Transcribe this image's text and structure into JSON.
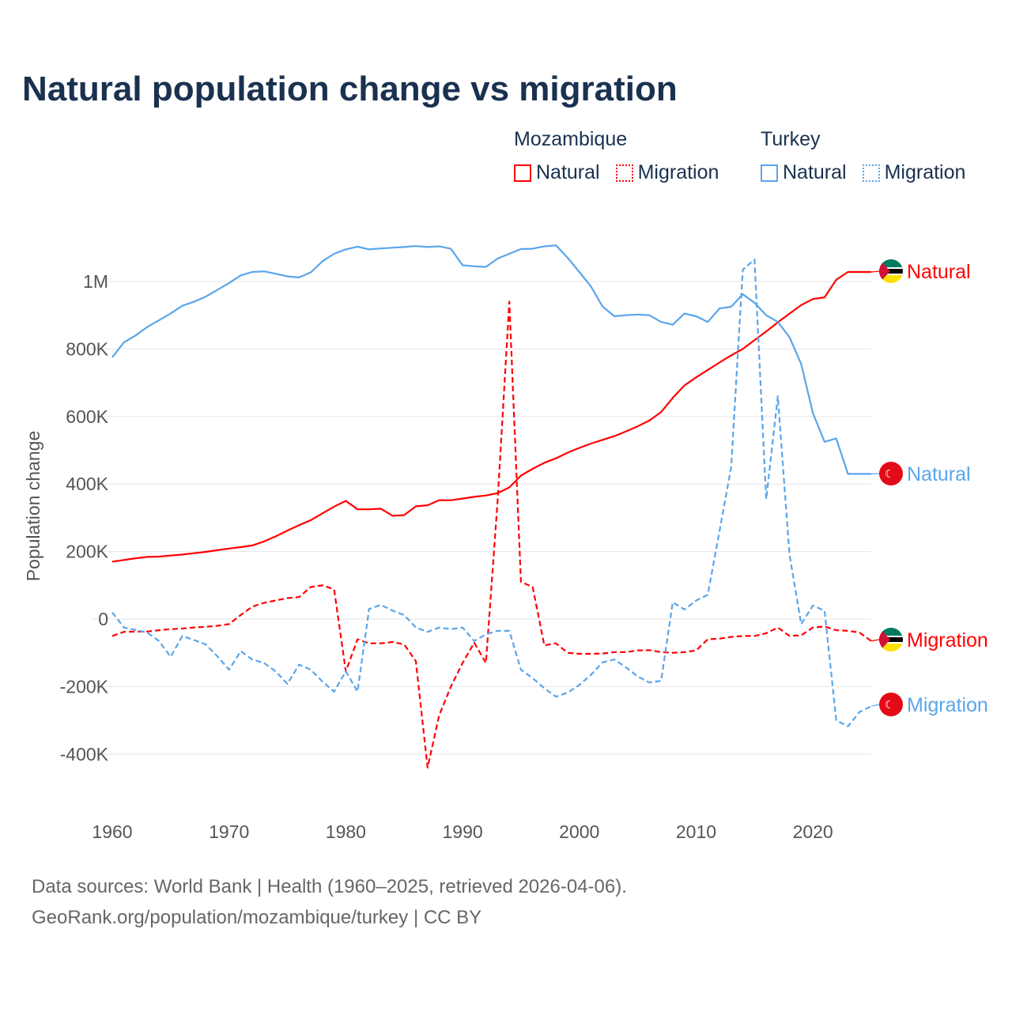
{
  "title": "Natural population change vs migration",
  "legend": [
    {
      "group": "Mozambique",
      "color": "#ff0000",
      "items": [
        "Natural",
        "Migration"
      ]
    },
    {
      "group": "Turkey",
      "color": "#5aa5ea",
      "items": [
        "Natural",
        "Migration"
      ]
    }
  ],
  "footer": {
    "line1": "Data sources: World Bank | Health (1960–2025, retrieved 2026-04-06).",
    "line2": "GeoRank.org/population/mozambique/turkey | CC BY"
  },
  "chart_data": {
    "type": "line",
    "title": "Natural population change vs migration",
    "xlabel": "",
    "ylabel": "Population change",
    "xlim": [
      1960,
      2025
    ],
    "ylim": [
      -400000,
      1100000
    ],
    "x_ticks": [
      1960,
      1970,
      1980,
      1990,
      2000,
      2010,
      2020
    ],
    "x_tick_labels": [
      "1960",
      "1970",
      "1980",
      "1990",
      "2000",
      "2010",
      "2020"
    ],
    "y_ticks": [
      -400000,
      -200000,
      0,
      200000,
      400000,
      600000,
      800000,
      1000000
    ],
    "y_tick_labels": [
      "-400K",
      "-200K",
      "0",
      "200K",
      "400K",
      "600K",
      "800K",
      "1M"
    ],
    "grid": true,
    "x": [
      1960,
      1961,
      1962,
      1963,
      1964,
      1965,
      1966,
      1967,
      1968,
      1969,
      1970,
      1971,
      1972,
      1973,
      1974,
      1975,
      1976,
      1977,
      1978,
      1979,
      1980,
      1981,
      1982,
      1983,
      1984,
      1985,
      1986,
      1987,
      1988,
      1989,
      1990,
      1991,
      1992,
      1993,
      1994,
      1995,
      1996,
      1997,
      1998,
      1999,
      2000,
      2001,
      2002,
      2003,
      2004,
      2005,
      2006,
      2007,
      2008,
      2009,
      2010,
      2011,
      2012,
      2013,
      2014,
      2015,
      2016,
      2017,
      2018,
      2019,
      2020,
      2021,
      2022,
      2023,
      2024,
      2025
    ],
    "series": [
      {
        "name": "Mozambique Natural",
        "end_label": "Natural",
        "country": "Mozambique",
        "color": "#ff0000",
        "dash": false,
        "values": [
          170,
          175,
          180,
          184,
          185,
          188,
          191,
          195,
          199,
          204,
          209,
          213,
          218,
          230,
          245,
          262,
          278,
          293,
          313,
          333,
          350,
          325,
          325,
          327,
          306,
          308,
          334,
          337,
          352,
          352,
          357,
          362,
          366,
          373,
          390,
          425,
          445,
          463,
          476,
          493,
          507,
          520,
          531,
          542,
          556,
          571,
          588,
          613,
          655,
          692,
          716,
          738,
          760,
          781,
          800,
          826,
          852,
          879,
          905,
          930,
          948,
          953,
          1005,
          1028,
          1028,
          1028
        ]
      },
      {
        "name": "Turkey Natural",
        "end_label": "Natural",
        "country": "Turkey",
        "color": "#5aa5ea",
        "dash": false,
        "values": [
          775,
          820,
          840,
          865,
          885,
          905,
          928,
          940,
          955,
          975,
          995,
          1018,
          1028,
          1030,
          1023,
          1015,
          1012,
          1027,
          1060,
          1082,
          1095,
          1103,
          1095,
          1098,
          1100,
          1102,
          1105,
          1102,
          1104,
          1097,
          1048,
          1045,
          1043,
          1068,
          1082,
          1096,
          1097,
          1104,
          1107,
          1070,
          1028,
          985,
          925,
          897,
          900,
          902,
          900,
          880,
          872,
          905,
          897,
          880,
          920,
          925,
          962,
          937,
          900,
          880,
          835,
          755,
          610,
          525,
          535,
          430,
          430,
          430
        ]
      },
      {
        "name": "Mozambique Migration",
        "end_label": "Migration",
        "country": "Mozambique",
        "color": "#ff0000",
        "dash": true,
        "values": [
          -50,
          -38,
          -37,
          -37,
          -33,
          -30,
          -28,
          -25,
          -23,
          -20,
          -15,
          12,
          37,
          48,
          55,
          62,
          65,
          95,
          100,
          88,
          -155,
          -60,
          -72,
          -72,
          -68,
          -75,
          -125,
          -440,
          -285,
          -200,
          -130,
          -70,
          -130,
          350,
          940,
          110,
          95,
          -78,
          -72,
          -100,
          -103,
          -103,
          -102,
          -98,
          -98,
          -93,
          -92,
          -98,
          -100,
          -98,
          -93,
          -60,
          -58,
          -53,
          -50,
          -50,
          -42,
          -25,
          -50,
          -48,
          -25,
          -22,
          -33,
          -35,
          -40,
          -65
        ]
      },
      {
        "name": "Turkey Migration",
        "end_label": "Migration",
        "country": "Turkey",
        "color": "#5aa5ea",
        "dash": true,
        "values": [
          20,
          -25,
          -32,
          -40,
          -65,
          -112,
          -50,
          -62,
          -75,
          -110,
          -150,
          -95,
          -120,
          -130,
          -155,
          -192,
          -135,
          -150,
          -185,
          -215,
          -155,
          -215,
          30,
          42,
          25,
          12,
          -25,
          -38,
          -25,
          -30,
          -25,
          -65,
          -45,
          -35,
          -35,
          -150,
          -175,
          -205,
          -230,
          -218,
          -195,
          -165,
          -128,
          -120,
          -143,
          -170,
          -188,
          -183,
          50,
          28,
          55,
          72,
          260,
          450,
          1035,
          1065,
          355,
          660,
          190,
          -15,
          40,
          25,
          -300,
          -318,
          -275,
          -258
        ]
      }
    ],
    "value_unit": "thousands"
  }
}
